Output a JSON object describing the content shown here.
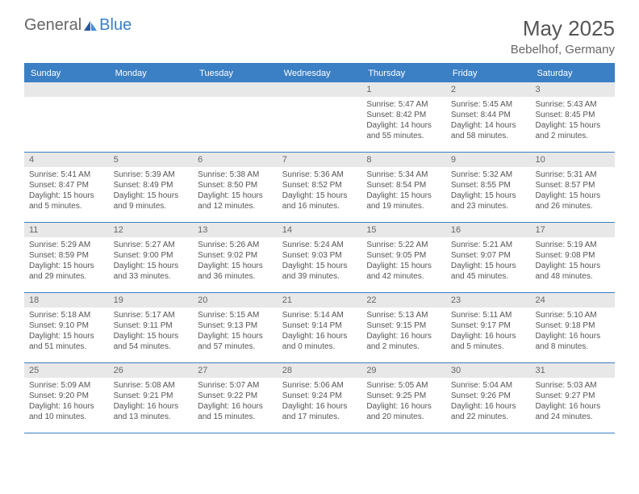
{
  "logo": {
    "general": "General",
    "blue": "Blue"
  },
  "title": "May 2025",
  "location": "Bebelhof, Germany",
  "colors": {
    "header_bg": "#3b7fc4",
    "header_text": "#ffffff",
    "daynum_bg": "#e8e8e8",
    "border": "#3b7fc4",
    "text": "#555555"
  },
  "day_names": [
    "Sunday",
    "Monday",
    "Tuesday",
    "Wednesday",
    "Thursday",
    "Friday",
    "Saturday"
  ],
  "weeks": [
    [
      {
        "n": "",
        "sr": "",
        "ss": "",
        "dl": ""
      },
      {
        "n": "",
        "sr": "",
        "ss": "",
        "dl": ""
      },
      {
        "n": "",
        "sr": "",
        "ss": "",
        "dl": ""
      },
      {
        "n": "",
        "sr": "",
        "ss": "",
        "dl": ""
      },
      {
        "n": "1",
        "sr": "Sunrise: 5:47 AM",
        "ss": "Sunset: 8:42 PM",
        "dl": "Daylight: 14 hours and 55 minutes."
      },
      {
        "n": "2",
        "sr": "Sunrise: 5:45 AM",
        "ss": "Sunset: 8:44 PM",
        "dl": "Daylight: 14 hours and 58 minutes."
      },
      {
        "n": "3",
        "sr": "Sunrise: 5:43 AM",
        "ss": "Sunset: 8:45 PM",
        "dl": "Daylight: 15 hours and 2 minutes."
      }
    ],
    [
      {
        "n": "4",
        "sr": "Sunrise: 5:41 AM",
        "ss": "Sunset: 8:47 PM",
        "dl": "Daylight: 15 hours and 5 minutes."
      },
      {
        "n": "5",
        "sr": "Sunrise: 5:39 AM",
        "ss": "Sunset: 8:49 PM",
        "dl": "Daylight: 15 hours and 9 minutes."
      },
      {
        "n": "6",
        "sr": "Sunrise: 5:38 AM",
        "ss": "Sunset: 8:50 PM",
        "dl": "Daylight: 15 hours and 12 minutes."
      },
      {
        "n": "7",
        "sr": "Sunrise: 5:36 AM",
        "ss": "Sunset: 8:52 PM",
        "dl": "Daylight: 15 hours and 16 minutes."
      },
      {
        "n": "8",
        "sr": "Sunrise: 5:34 AM",
        "ss": "Sunset: 8:54 PM",
        "dl": "Daylight: 15 hours and 19 minutes."
      },
      {
        "n": "9",
        "sr": "Sunrise: 5:32 AM",
        "ss": "Sunset: 8:55 PM",
        "dl": "Daylight: 15 hours and 23 minutes."
      },
      {
        "n": "10",
        "sr": "Sunrise: 5:31 AM",
        "ss": "Sunset: 8:57 PM",
        "dl": "Daylight: 15 hours and 26 minutes."
      }
    ],
    [
      {
        "n": "11",
        "sr": "Sunrise: 5:29 AM",
        "ss": "Sunset: 8:59 PM",
        "dl": "Daylight: 15 hours and 29 minutes."
      },
      {
        "n": "12",
        "sr": "Sunrise: 5:27 AM",
        "ss": "Sunset: 9:00 PM",
        "dl": "Daylight: 15 hours and 33 minutes."
      },
      {
        "n": "13",
        "sr": "Sunrise: 5:26 AM",
        "ss": "Sunset: 9:02 PM",
        "dl": "Daylight: 15 hours and 36 minutes."
      },
      {
        "n": "14",
        "sr": "Sunrise: 5:24 AM",
        "ss": "Sunset: 9:03 PM",
        "dl": "Daylight: 15 hours and 39 minutes."
      },
      {
        "n": "15",
        "sr": "Sunrise: 5:22 AM",
        "ss": "Sunset: 9:05 PM",
        "dl": "Daylight: 15 hours and 42 minutes."
      },
      {
        "n": "16",
        "sr": "Sunrise: 5:21 AM",
        "ss": "Sunset: 9:07 PM",
        "dl": "Daylight: 15 hours and 45 minutes."
      },
      {
        "n": "17",
        "sr": "Sunrise: 5:19 AM",
        "ss": "Sunset: 9:08 PM",
        "dl": "Daylight: 15 hours and 48 minutes."
      }
    ],
    [
      {
        "n": "18",
        "sr": "Sunrise: 5:18 AM",
        "ss": "Sunset: 9:10 PM",
        "dl": "Daylight: 15 hours and 51 minutes."
      },
      {
        "n": "19",
        "sr": "Sunrise: 5:17 AM",
        "ss": "Sunset: 9:11 PM",
        "dl": "Daylight: 15 hours and 54 minutes."
      },
      {
        "n": "20",
        "sr": "Sunrise: 5:15 AM",
        "ss": "Sunset: 9:13 PM",
        "dl": "Daylight: 15 hours and 57 minutes."
      },
      {
        "n": "21",
        "sr": "Sunrise: 5:14 AM",
        "ss": "Sunset: 9:14 PM",
        "dl": "Daylight: 16 hours and 0 minutes."
      },
      {
        "n": "22",
        "sr": "Sunrise: 5:13 AM",
        "ss": "Sunset: 9:15 PM",
        "dl": "Daylight: 16 hours and 2 minutes."
      },
      {
        "n": "23",
        "sr": "Sunrise: 5:11 AM",
        "ss": "Sunset: 9:17 PM",
        "dl": "Daylight: 16 hours and 5 minutes."
      },
      {
        "n": "24",
        "sr": "Sunrise: 5:10 AM",
        "ss": "Sunset: 9:18 PM",
        "dl": "Daylight: 16 hours and 8 minutes."
      }
    ],
    [
      {
        "n": "25",
        "sr": "Sunrise: 5:09 AM",
        "ss": "Sunset: 9:20 PM",
        "dl": "Daylight: 16 hours and 10 minutes."
      },
      {
        "n": "26",
        "sr": "Sunrise: 5:08 AM",
        "ss": "Sunset: 9:21 PM",
        "dl": "Daylight: 16 hours and 13 minutes."
      },
      {
        "n": "27",
        "sr": "Sunrise: 5:07 AM",
        "ss": "Sunset: 9:22 PM",
        "dl": "Daylight: 16 hours and 15 minutes."
      },
      {
        "n": "28",
        "sr": "Sunrise: 5:06 AM",
        "ss": "Sunset: 9:24 PM",
        "dl": "Daylight: 16 hours and 17 minutes."
      },
      {
        "n": "29",
        "sr": "Sunrise: 5:05 AM",
        "ss": "Sunset: 9:25 PM",
        "dl": "Daylight: 16 hours and 20 minutes."
      },
      {
        "n": "30",
        "sr": "Sunrise: 5:04 AM",
        "ss": "Sunset: 9:26 PM",
        "dl": "Daylight: 16 hours and 22 minutes."
      },
      {
        "n": "31",
        "sr": "Sunrise: 5:03 AM",
        "ss": "Sunset: 9:27 PM",
        "dl": "Daylight: 16 hours and 24 minutes."
      }
    ]
  ]
}
